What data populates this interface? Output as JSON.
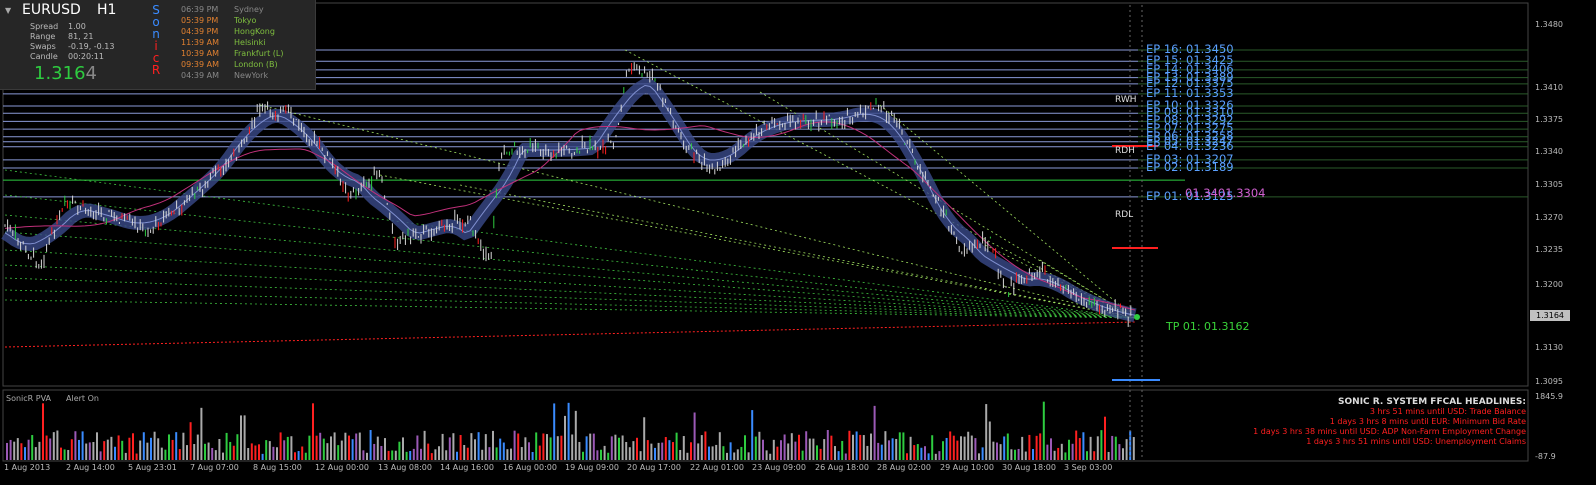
{
  "symbol": "EURUSD",
  "timeframe": "H1",
  "info": {
    "spread_label": "Spread",
    "spread_value": "1.00",
    "range_label": "Range",
    "range_value": "81, 21",
    "swaps_label": "Swaps",
    "swaps_value": "-0.19, -0.13",
    "candle_label": "Candle",
    "candle_value": "00:20:11",
    "price_main": "1.316",
    "price_last": "4"
  },
  "sonic_letters": [
    {
      "ch": "S",
      "color": "#3a8bff"
    },
    {
      "ch": "o",
      "color": "#3a8bff"
    },
    {
      "ch": "n",
      "color": "#3a8bff"
    },
    {
      "ch": "i",
      "color": "#ff2020"
    },
    {
      "ch": "c",
      "color": "#ff2020"
    },
    {
      "ch": "R",
      "color": "#ff2020"
    }
  ],
  "sessions": [
    {
      "time": "06:39 PM",
      "name": "Sydney",
      "time_color": "#888888",
      "name_color": "#888888"
    },
    {
      "time": "05:39 PM",
      "name": "Tokyo",
      "time_color": "#e08030",
      "name_color": "#7fbf3f"
    },
    {
      "time": "04:39 PM",
      "name": "HongKong",
      "time_color": "#e08030",
      "name_color": "#7fbf3f"
    },
    {
      "time": "11:39 AM",
      "name": "Helsinki",
      "time_color": "#e08030",
      "name_color": "#7fbf3f"
    },
    {
      "time": "10:39 AM",
      "name": "Frankfurt  (L)",
      "time_color": "#e08030",
      "name_color": "#7fbf3f"
    },
    {
      "time": "09:39 AM",
      "name": "London  (B)",
      "time_color": "#e08030",
      "name_color": "#7fbf3f"
    },
    {
      "time": "04:39 AM",
      "name": "NewYork",
      "time_color": "#888888",
      "name_color": "#888888"
    }
  ],
  "entry_levels": [
    {
      "label": "EP 16:  01.3450",
      "price": 1.345
    },
    {
      "label": "EP 15:  01.3425",
      "price": 1.3425
    },
    {
      "label": "EP 14:  01.3406",
      "price": 1.3406
    },
    {
      "label": "EP 13:  01.3389",
      "price": 1.3389
    },
    {
      "label": "EP 12:  01.3375",
      "price": 1.3375
    },
    {
      "label": "EP 11:  01.3353",
      "price": 1.3353
    },
    {
      "label": "EP 10:  01.3326",
      "price": 1.3326
    },
    {
      "label": "EP 09:  01.3310",
      "price": 1.331
    },
    {
      "label": "EP 08:  01.3292",
      "price": 1.3292
    },
    {
      "label": "EP 07:  01.3275",
      "price": 1.3275
    },
    {
      "label": "EP 06:  01.3258",
      "price": 1.3258
    },
    {
      "label": "EP 05:  01.3247",
      "price": 1.3247
    },
    {
      "label": "EP 04:  01.3236",
      "price": 1.3236
    },
    {
      "label": "EP 03:  01.3207",
      "price": 1.3207
    },
    {
      "label": "EP 02:  01.3189",
      "price": 1.3189
    },
    {
      "label": "EP 01:  01.3125",
      "price": 1.3125
    }
  ],
  "overlay_label": "01.3401.3304",
  "take_profit": {
    "label": "TP 01:  01.3162",
    "price": 1.3162
  },
  "markers": [
    {
      "label": "RWH",
      "price": 1.3353
    },
    {
      "label": "RDH",
      "price": 1.324
    },
    {
      "label": "RDL",
      "price": 1.3098
    }
  ],
  "current_price": "1.3164",
  "price_axis": [
    "1.3480",
    "1.3410",
    "1.3375",
    "1.3340",
    "1.3305",
    "1.3270",
    "1.3235",
    "1.3200",
    "1.3130",
    "1.3095"
  ],
  "time_axis": [
    "1 Aug 2013",
    "2 Aug 14:00",
    "5 Aug 23:01",
    "7 Aug 07:00",
    "8 Aug 15:00",
    "12 Aug 00:00",
    "13 Aug 08:00",
    "14 Aug 16:00",
    "16 Aug 00:00",
    "19 Aug 09:00",
    "20 Aug 17:00",
    "22 Aug 01:00",
    "23 Aug 09:00",
    "26 Aug 18:00",
    "28 Aug 02:00",
    "29 Aug 10:00",
    "30 Aug 18:00",
    "3 Sep 03:00"
  ],
  "indicator": {
    "title": "SonicR PVA",
    "alert": "Alert On",
    "axis_top": "1845.9",
    "axis_bottom": "-87.9"
  },
  "headlines": {
    "title": "SONIC R. SYSTEM  FFCAL HEADLINES:",
    "items": [
      "3 hrs 51 mins until USD: Trade Balance",
      "1 days 3 hrs 8 mins until EUR: Minimum Bid Rate",
      "1 days 3 hrs 38 mins until USD: ADP Non-Farm Employment Change",
      "1 days 3 hrs 51 mins until USD: Unemployment Claims"
    ]
  },
  "colors": {
    "background": "#000000",
    "level_line": "#8a9ad8",
    "ep_text": "#5aa0ff",
    "bull": "#2ecc40",
    "bear": "#ff2020",
    "dragon_band": "#3a4a8a",
    "pink_ma": "#c0307a"
  }
}
